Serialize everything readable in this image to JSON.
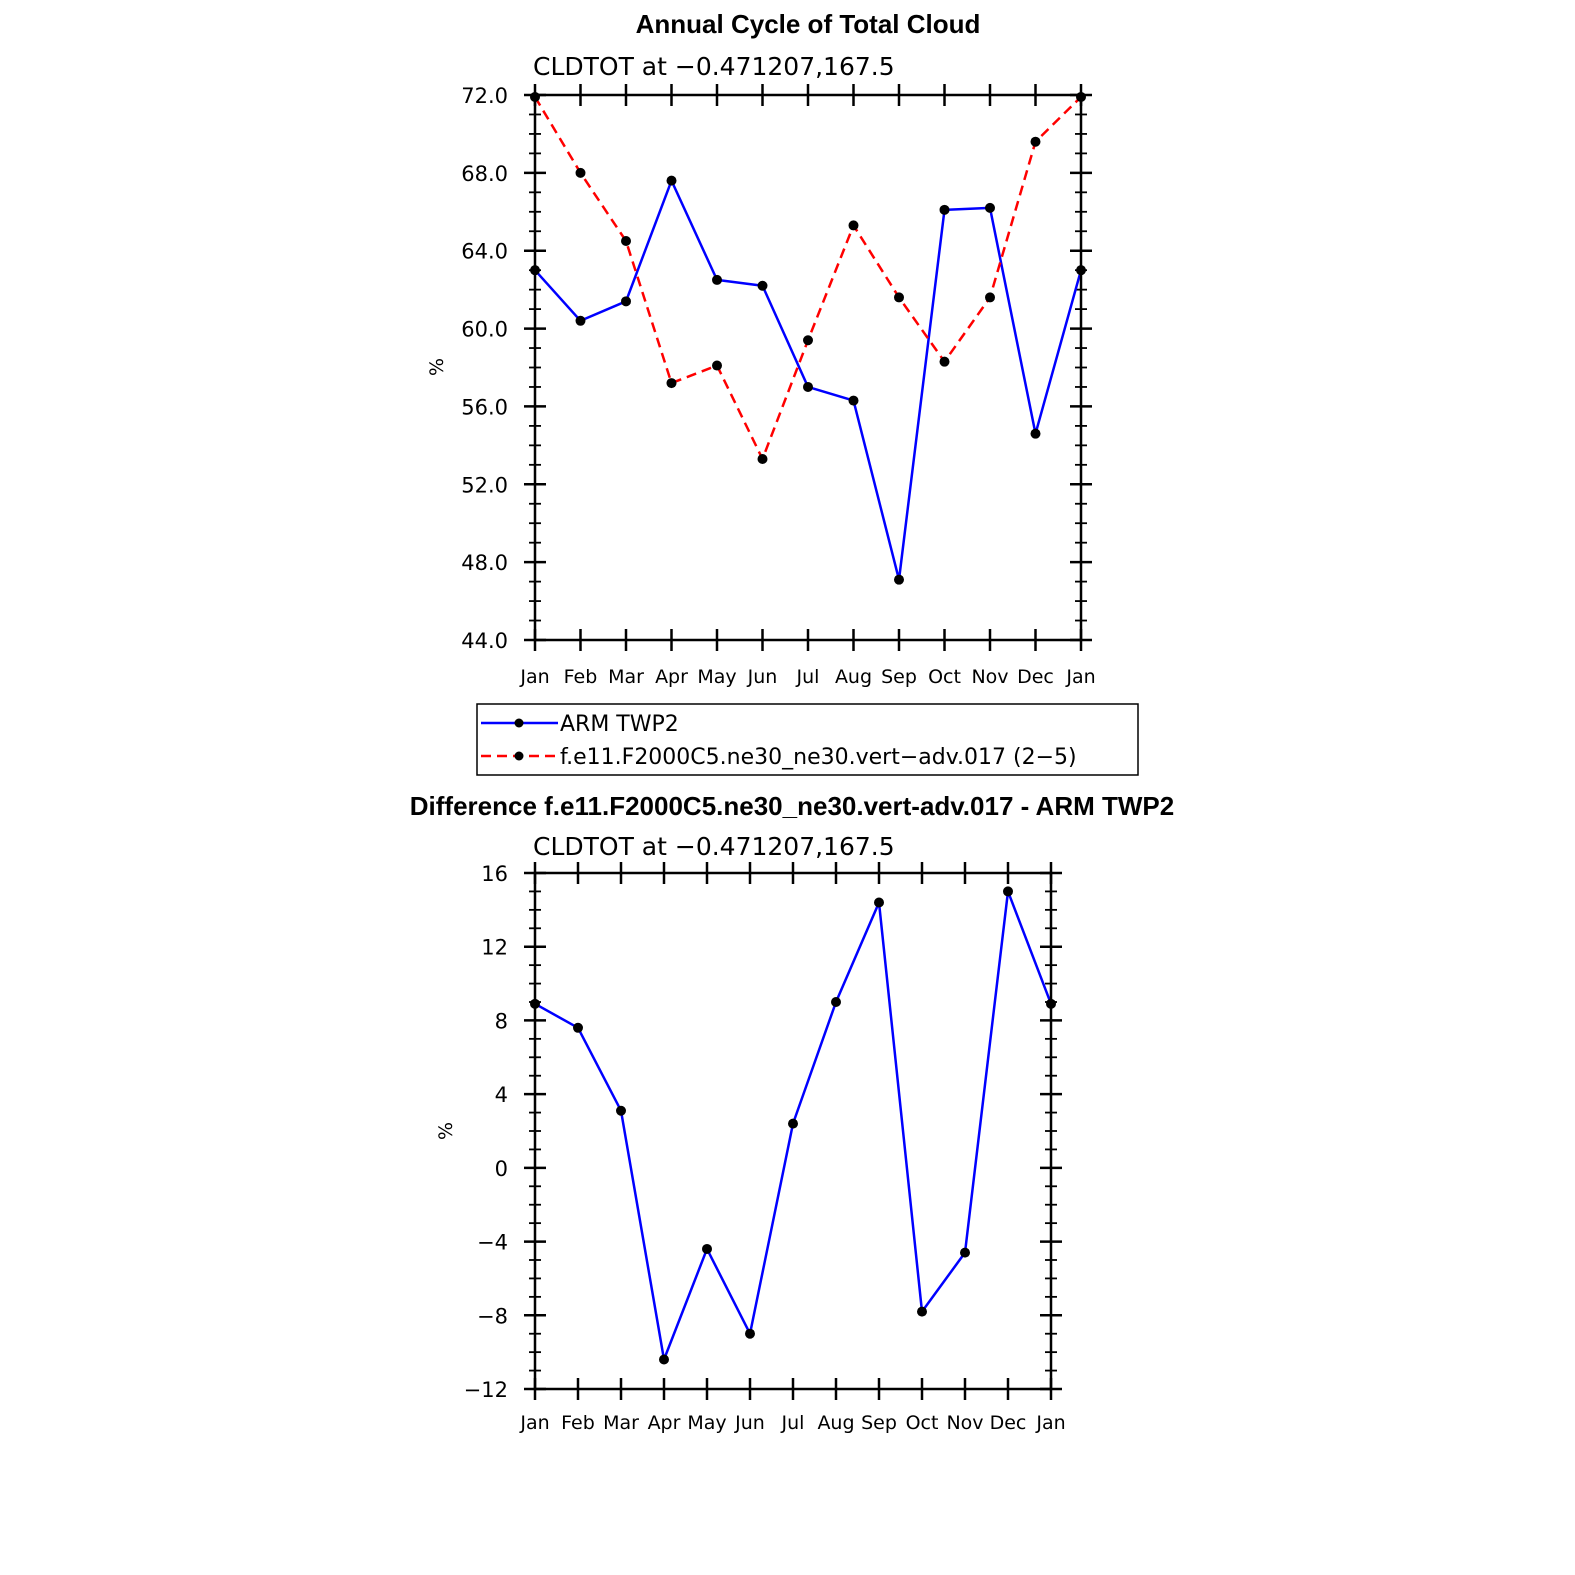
{
  "chart_data": [
    {
      "type": "line",
      "title": "Annual Cycle of Total Cloud",
      "subtitle": "CLDTOT at −0.471207,167.5",
      "xlabel": "",
      "ylabel": "%",
      "categories": [
        "Jan",
        "Feb",
        "Mar",
        "Apr",
        "May",
        "Jun",
        "Jul",
        "Aug",
        "Sep",
        "Oct",
        "Nov",
        "Dec",
        "Jan"
      ],
      "ylim": [
        44.0,
        72.0
      ],
      "yticks": [
        44.0,
        48.0,
        52.0,
        56.0,
        60.0,
        64.0,
        68.0,
        72.0
      ],
      "ytick_labels": [
        "44.0",
        "48.0",
        "52.0",
        "56.0",
        "60.0",
        "64.0",
        "68.0",
        "72.0"
      ],
      "grid": false,
      "legend_position": "bottom",
      "series": [
        {
          "name": "ARM TWP2",
          "color": "#0000ff",
          "dash": "solid",
          "values": [
            63.0,
            60.4,
            61.4,
            67.6,
            62.5,
            62.2,
            57.0,
            56.3,
            47.1,
            66.1,
            66.2,
            54.6,
            63.0
          ]
        },
        {
          "name": "f.e11.F2000C5.ne30_ne30.vert−adv.017 (2−5)",
          "color": "#ff0000",
          "dash": "dashed",
          "values": [
            71.9,
            68.0,
            64.5,
            57.2,
            58.1,
            53.3,
            59.4,
            65.3,
            61.6,
            58.3,
            61.6,
            69.6,
            71.9
          ]
        }
      ]
    },
    {
      "type": "line",
      "title": "Difference f.e11.F2000C5.ne30_ne30.vert-adv.017 - ARM TWP2",
      "subtitle": "CLDTOT at −0.471207,167.5",
      "xlabel": "",
      "ylabel": "%",
      "categories": [
        "Jan",
        "Feb",
        "Mar",
        "Apr",
        "May",
        "Jun",
        "Jul",
        "Aug",
        "Sep",
        "Oct",
        "Nov",
        "Dec",
        "Jan"
      ],
      "ylim": [
        -12,
        16
      ],
      "yticks": [
        -12,
        -8,
        -4,
        0,
        4,
        8,
        12,
        16
      ],
      "ytick_labels": [
        "−12",
        "−8",
        "−4",
        "0",
        "4",
        "8",
        "12",
        "16"
      ],
      "grid": false,
      "series": [
        {
          "name": "Difference",
          "color": "#0000ff",
          "dash": "solid",
          "values": [
            8.9,
            7.6,
            3.1,
            -10.4,
            -4.4,
            -9.0,
            2.4,
            9.0,
            14.4,
            -7.8,
            -4.6,
            15.0,
            8.9
          ]
        }
      ]
    }
  ]
}
